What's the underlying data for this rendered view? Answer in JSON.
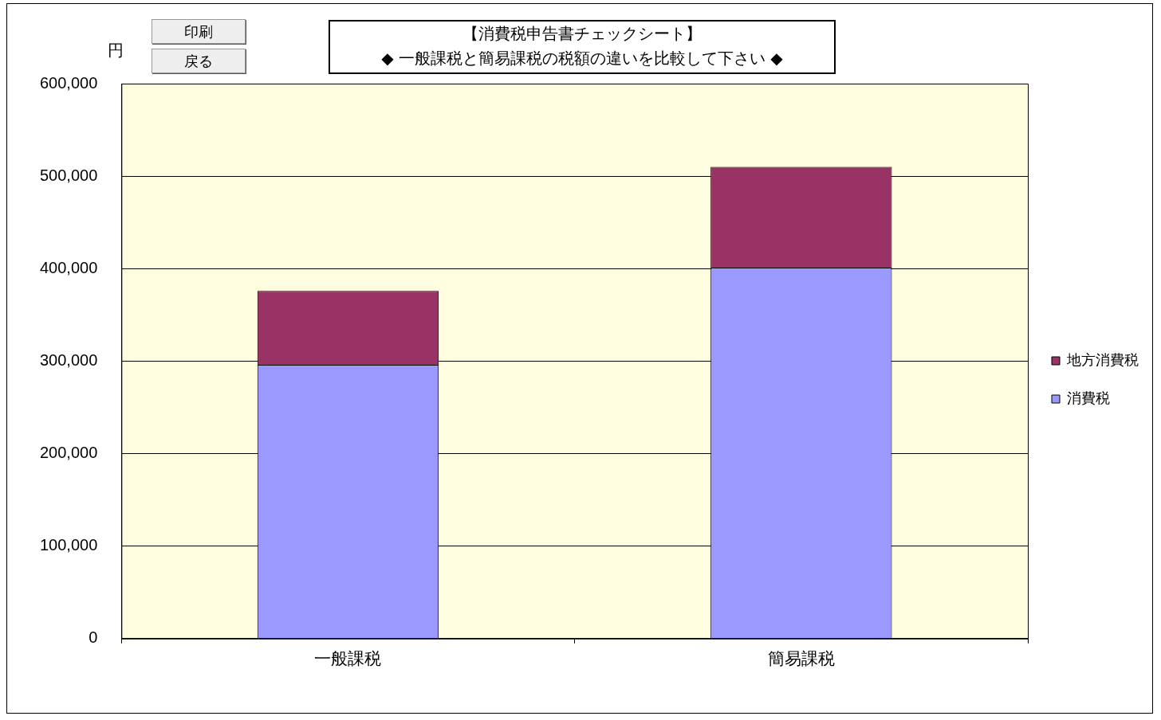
{
  "chart_data": {
    "type": "bar",
    "title": "【消費税申告書チェックシート】",
    "subtitle": "◆ 一般課税と簡易課税の税額の違いを比較して下さい ◆",
    "ylabel": "円",
    "annotations": [
      "印刷",
      "戻る"
    ],
    "categories": [
      "一般課税",
      "簡易課税"
    ],
    "series": [
      {
        "name": "消費税",
        "color": "#9999ff",
        "values": [
          296000,
          401000
        ]
      },
      {
        "name": "地方消費税",
        "color": "#993366",
        "values": [
          80000,
          109000
        ]
      }
    ],
    "stacked": true,
    "ylim": [
      0,
      600000
    ],
    "yticks": [
      {
        "value": 0,
        "label": "0"
      },
      {
        "value": 100000,
        "label": "100,000"
      },
      {
        "value": 200000,
        "label": "200,000"
      },
      {
        "value": 300000,
        "label": "300,000"
      },
      {
        "value": 400000,
        "label": "400,000"
      },
      {
        "value": 500000,
        "label": "500,000"
      },
      {
        "value": 600000,
        "label": "600,000"
      }
    ],
    "grid": "y",
    "legend": "right"
  }
}
